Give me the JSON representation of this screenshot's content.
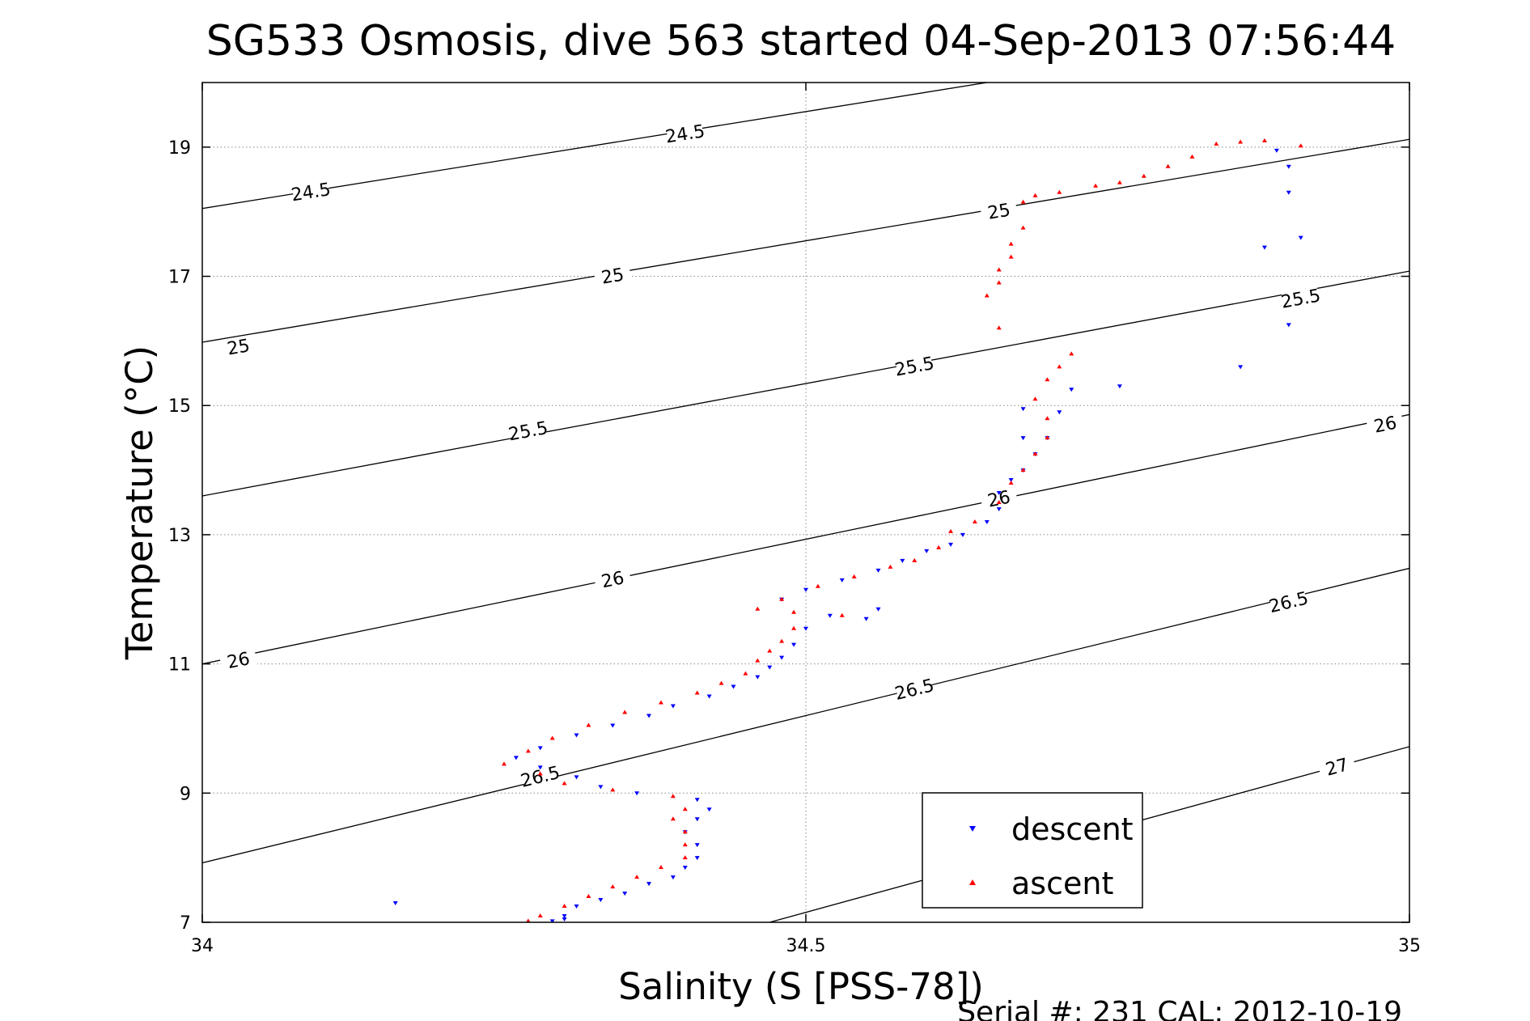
{
  "chart_data": {
    "type": "scatter",
    "title": "SG533 Osmosis, dive 563 started 04-Sep-2013 07:56:44",
    "xlabel": "Salinity (S [PSS-78])",
    "ylabel": "Temperature (°C)",
    "xlim": [
      34,
      35
    ],
    "ylim": [
      7,
      20
    ],
    "xticks": [
      34,
      34.5,
      35
    ],
    "xtick_labels": [
      "34",
      "34.5",
      "35"
    ],
    "yticks": [
      7,
      9,
      11,
      13,
      15,
      17,
      19
    ],
    "ytick_labels": [
      "7",
      "9",
      "11",
      "13",
      "15",
      "17",
      "19"
    ],
    "grid": true,
    "legend_position": "bottom-right",
    "footer": "Serial #: 231  CAL: 2012-10-19",
    "density_contours": [
      {
        "level": "24.5",
        "points": [
          [
            34.0,
            18.05
          ],
          [
            34.65,
            20.0
          ]
        ],
        "labels": [
          {
            "text": "24.5",
            "at": [
              34.09,
              18.3
            ]
          },
          {
            "text": "24.5",
            "at": [
              34.4,
              19.2
            ]
          }
        ]
      },
      {
        "level": "25",
        "points": [
          [
            34.0,
            15.98
          ],
          [
            35.0,
            19.12
          ]
        ],
        "labels": [
          {
            "text": "25",
            "at": [
              34.03,
              15.9
            ]
          },
          {
            "text": "25",
            "at": [
              34.34,
              17.0
            ]
          },
          {
            "text": "25",
            "at": [
              34.66,
              18.0
            ]
          }
        ]
      },
      {
        "level": "25.5",
        "points": [
          [
            34.0,
            13.6
          ],
          [
            35.0,
            17.08
          ]
        ],
        "labels": [
          {
            "text": "25.5",
            "at": [
              34.27,
              14.6
            ]
          },
          {
            "text": "25.5",
            "at": [
              34.59,
              15.6
            ]
          },
          {
            "text": "25.5",
            "at": [
              34.91,
              16.65
            ]
          }
        ]
      },
      {
        "level": "26",
        "points": [
          [
            34.0,
            11.0
          ],
          [
            35.0,
            14.86
          ]
        ],
        "labels": [
          {
            "text": "26",
            "at": [
              34.03,
              11.05
            ]
          },
          {
            "text": "26",
            "at": [
              34.34,
              12.3
            ]
          },
          {
            "text": "26",
            "at": [
              34.66,
              13.55
            ]
          },
          {
            "text": "26",
            "at": [
              34.98,
              14.7
            ]
          }
        ]
      },
      {
        "level": "26.5",
        "points": [
          [
            34.0,
            7.92
          ],
          [
            35.0,
            12.48
          ]
        ],
        "labels": [
          {
            "text": "26.5",
            "at": [
              34.28,
              9.25
            ]
          },
          {
            "text": "26.5",
            "at": [
              34.59,
              10.6
            ]
          },
          {
            "text": "26.5",
            "at": [
              34.9,
              11.95
            ]
          }
        ]
      },
      {
        "level": "27",
        "points": [
          [
            34.47,
            7.0
          ],
          [
            35.0,
            9.72
          ]
        ],
        "labels": [
          {
            "text": "27",
            "at": [
              34.94,
              9.4
            ]
          }
        ]
      }
    ],
    "series": [
      {
        "name": "descent",
        "color": "#0000ff",
        "marker": "triangle-down",
        "points": [
          [
            34.89,
            18.95
          ],
          [
            34.9,
            18.7
          ],
          [
            34.9,
            18.3
          ],
          [
            34.91,
            17.6
          ],
          [
            34.88,
            17.45
          ],
          [
            34.9,
            16.25
          ],
          [
            34.86,
            15.6
          ],
          [
            34.76,
            15.3
          ],
          [
            34.72,
            15.25
          ],
          [
            34.68,
            14.95
          ],
          [
            34.68,
            14.5
          ],
          [
            34.71,
            14.9
          ],
          [
            34.7,
            14.5
          ],
          [
            34.69,
            14.25
          ],
          [
            34.68,
            14.0
          ],
          [
            34.67,
            13.85
          ],
          [
            34.66,
            13.65
          ],
          [
            34.66,
            13.4
          ],
          [
            34.65,
            13.2
          ],
          [
            34.63,
            13.0
          ],
          [
            34.62,
            12.85
          ],
          [
            34.6,
            12.75
          ],
          [
            34.58,
            12.6
          ],
          [
            34.56,
            12.45
          ],
          [
            34.53,
            12.3
          ],
          [
            34.5,
            12.15
          ],
          [
            34.48,
            12.0
          ],
          [
            34.56,
            11.85
          ],
          [
            34.55,
            11.7
          ],
          [
            34.52,
            11.75
          ],
          [
            34.5,
            11.55
          ],
          [
            34.49,
            11.3
          ],
          [
            34.48,
            11.1
          ],
          [
            34.47,
            10.95
          ],
          [
            34.46,
            10.8
          ],
          [
            34.44,
            10.65
          ],
          [
            34.42,
            10.5
          ],
          [
            34.39,
            10.35
          ],
          [
            34.37,
            10.2
          ],
          [
            34.34,
            10.05
          ],
          [
            34.31,
            9.9
          ],
          [
            34.28,
            9.7
          ],
          [
            34.26,
            9.55
          ],
          [
            34.28,
            9.4
          ],
          [
            34.31,
            9.25
          ],
          [
            34.33,
            9.1
          ],
          [
            34.36,
            9.0
          ],
          [
            34.41,
            8.9
          ],
          [
            34.42,
            8.75
          ],
          [
            34.41,
            8.6
          ],
          [
            34.4,
            8.4
          ],
          [
            34.41,
            8.2
          ],
          [
            34.41,
            8.0
          ],
          [
            34.4,
            7.85
          ],
          [
            34.39,
            7.7
          ],
          [
            34.37,
            7.6
          ],
          [
            34.35,
            7.45
          ],
          [
            34.33,
            7.35
          ],
          [
            34.31,
            7.25
          ],
          [
            34.3,
            7.1
          ],
          [
            34.16,
            7.3
          ],
          [
            34.3,
            7.05
          ],
          [
            34.29,
            7.02
          ]
        ]
      },
      {
        "name": "ascent",
        "color": "#ff0000",
        "marker": "triangle-up",
        "points": [
          [
            34.91,
            19.02
          ],
          [
            34.88,
            19.1
          ],
          [
            34.86,
            19.08
          ],
          [
            34.84,
            19.05
          ],
          [
            34.82,
            18.85
          ],
          [
            34.8,
            18.7
          ],
          [
            34.78,
            18.55
          ],
          [
            34.76,
            18.45
          ],
          [
            34.74,
            18.4
          ],
          [
            34.71,
            18.3
          ],
          [
            34.69,
            18.25
          ],
          [
            34.68,
            18.15
          ],
          [
            34.68,
            17.75
          ],
          [
            34.67,
            17.5
          ],
          [
            34.67,
            17.3
          ],
          [
            34.66,
            17.1
          ],
          [
            34.66,
            16.9
          ],
          [
            34.65,
            16.7
          ],
          [
            34.66,
            16.2
          ],
          [
            34.72,
            15.8
          ],
          [
            34.71,
            15.6
          ],
          [
            34.7,
            15.4
          ],
          [
            34.69,
            15.1
          ],
          [
            34.7,
            14.8
          ],
          [
            34.7,
            14.5
          ],
          [
            34.69,
            14.25
          ],
          [
            34.68,
            14.0
          ],
          [
            34.67,
            13.8
          ],
          [
            34.66,
            13.5
          ],
          [
            34.64,
            13.2
          ],
          [
            34.62,
            13.05
          ],
          [
            34.61,
            12.8
          ],
          [
            34.59,
            12.6
          ],
          [
            34.57,
            12.5
          ],
          [
            34.54,
            12.35
          ],
          [
            34.51,
            12.2
          ],
          [
            34.48,
            12.0
          ],
          [
            34.46,
            11.85
          ],
          [
            34.49,
            11.8
          ],
          [
            34.53,
            11.75
          ],
          [
            34.49,
            11.55
          ],
          [
            34.48,
            11.35
          ],
          [
            34.47,
            11.2
          ],
          [
            34.46,
            11.05
          ],
          [
            34.45,
            10.85
          ],
          [
            34.43,
            10.7
          ],
          [
            34.41,
            10.55
          ],
          [
            34.38,
            10.4
          ],
          [
            34.35,
            10.25
          ],
          [
            34.32,
            10.05
          ],
          [
            34.29,
            9.85
          ],
          [
            34.27,
            9.65
          ],
          [
            34.25,
            9.45
          ],
          [
            34.28,
            9.3
          ],
          [
            34.3,
            9.15
          ],
          [
            34.34,
            9.05
          ],
          [
            34.39,
            8.95
          ],
          [
            34.4,
            8.75
          ],
          [
            34.39,
            8.6
          ],
          [
            34.4,
            8.4
          ],
          [
            34.4,
            8.2
          ],
          [
            34.4,
            8.0
          ],
          [
            34.38,
            7.85
          ],
          [
            34.36,
            7.7
          ],
          [
            34.34,
            7.55
          ],
          [
            34.32,
            7.4
          ],
          [
            34.3,
            7.25
          ],
          [
            34.28,
            7.1
          ],
          [
            34.27,
            7.02
          ]
        ]
      }
    ]
  }
}
